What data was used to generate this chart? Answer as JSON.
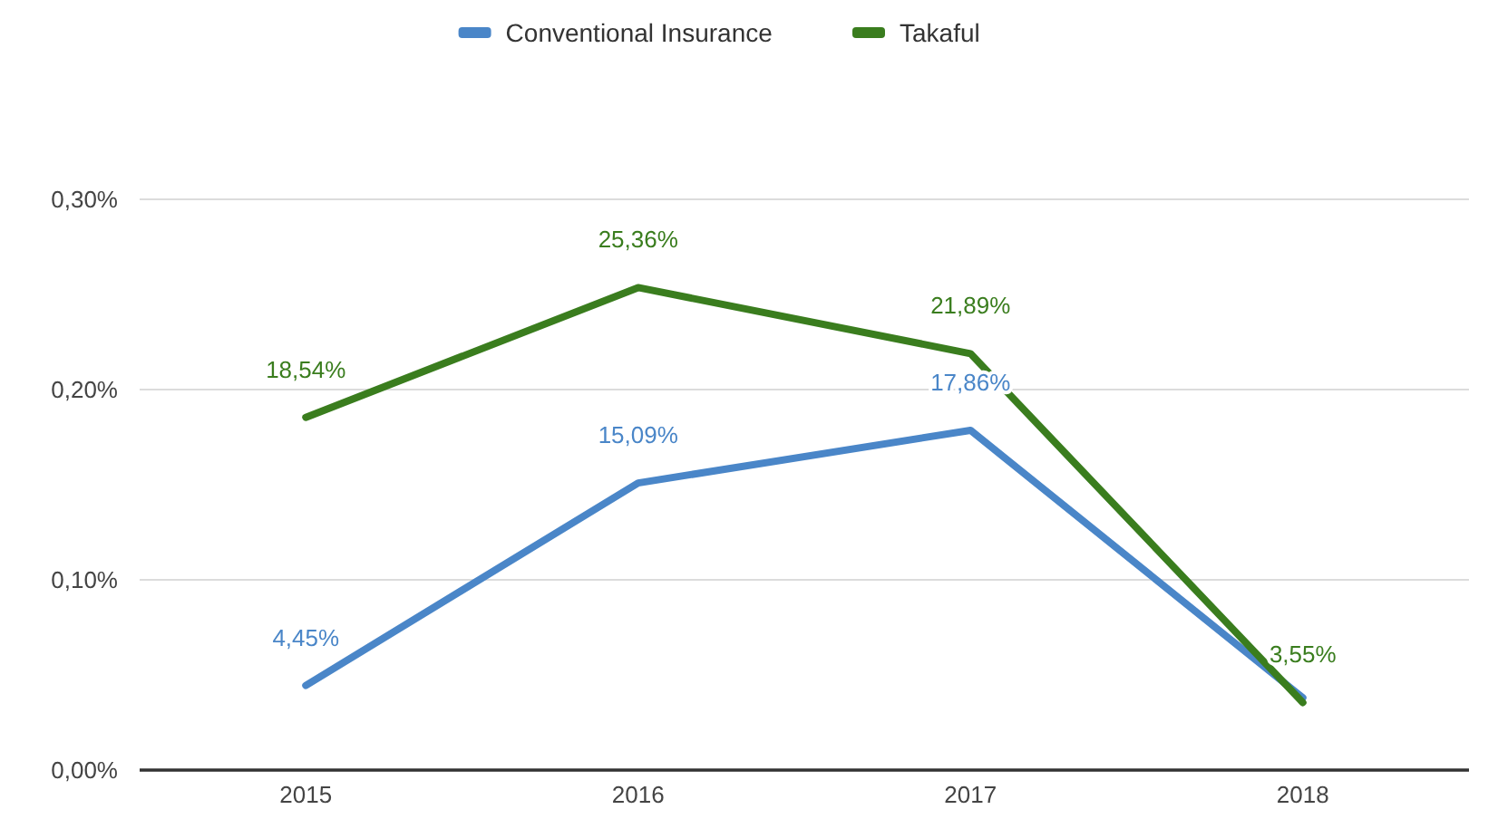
{
  "chart_data": {
    "type": "line",
    "categories": [
      "2015",
      "2016",
      "2017",
      "2018"
    ],
    "series": [
      {
        "name": "Conventional Insurance",
        "color": "#4a86c8",
        "values": [
          0.0445,
          0.1509,
          0.1786,
          0.038
        ],
        "value_labels": [
          "4,45%",
          "15,09%",
          "17,86%",
          null
        ]
      },
      {
        "name": "Takaful",
        "color": "#3a7d1e",
        "values": [
          0.1854,
          0.2536,
          0.2189,
          0.0355
        ],
        "value_labels": [
          "18,54%",
          "25,36%",
          "21,89%",
          "3,55%"
        ]
      }
    ],
    "ylim": [
      0,
      0.3
    ],
    "yticks": [
      {
        "value": 0,
        "label": "0,00%"
      },
      {
        "value": 0.1,
        "label": "0,10%"
      },
      {
        "value": 0.2,
        "label": "0,20%"
      },
      {
        "value": 0.3,
        "label": "0,30%"
      }
    ],
    "grid": "y",
    "legend": "top",
    "marker": "none",
    "line_style": "solid"
  }
}
